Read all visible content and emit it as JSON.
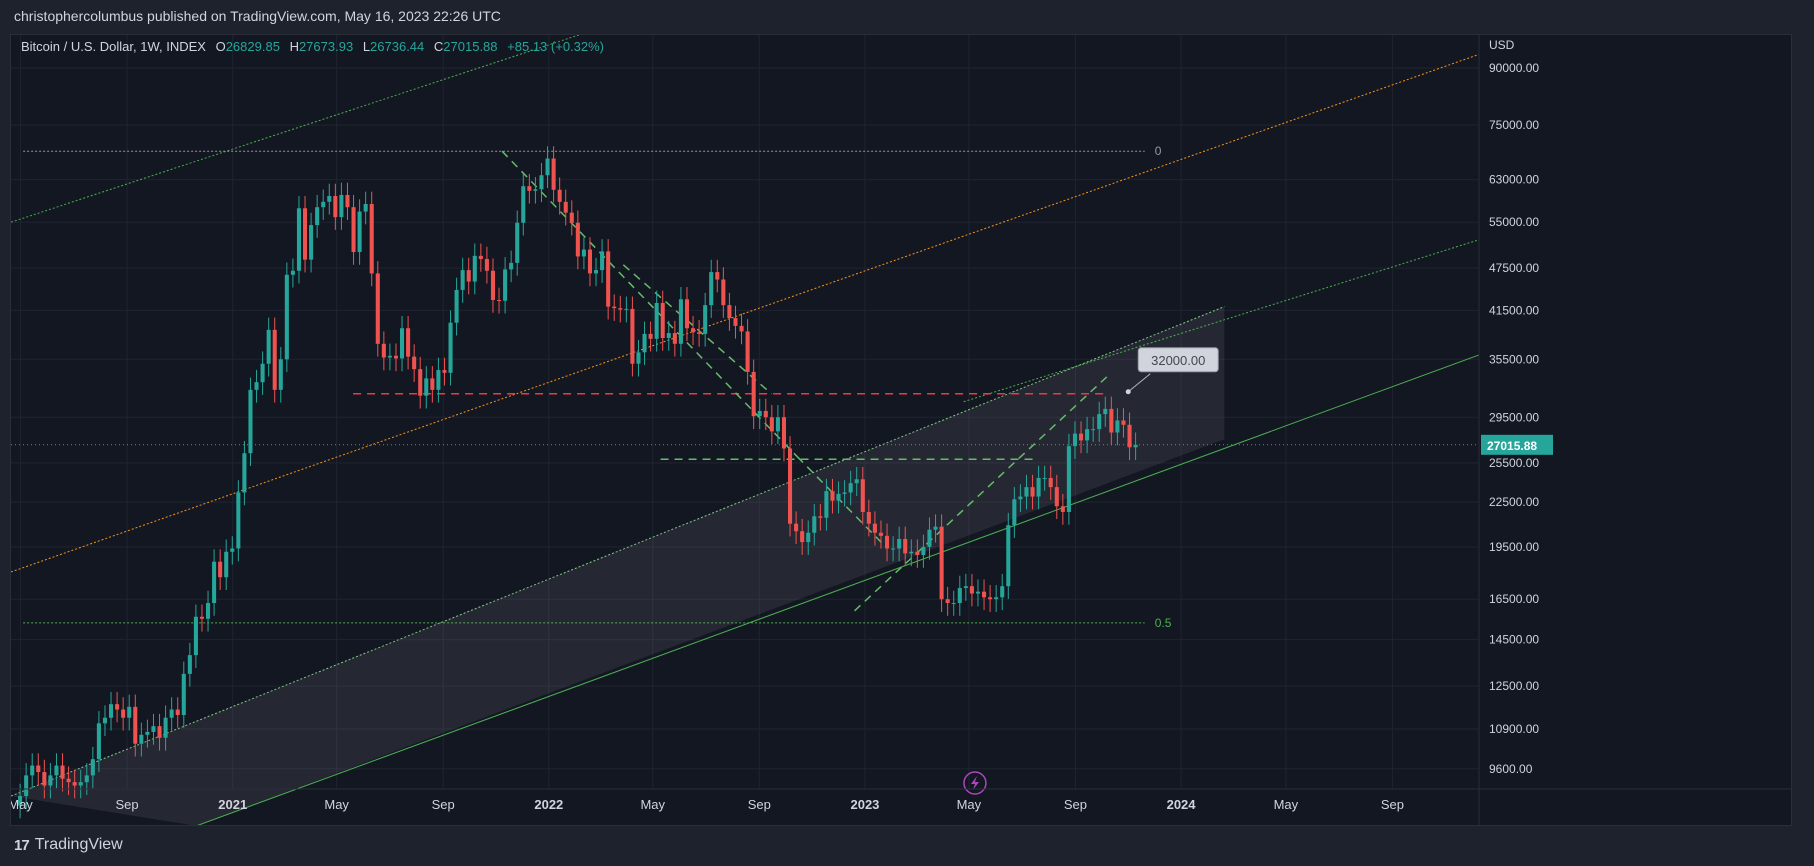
{
  "header": {
    "text": "christophercolumbus published on TradingView.com, May 16, 2023 22:26 UTC"
  },
  "symbol_info": {
    "name": "Bitcoin / U.S. Dollar, 1W, INDEX",
    "o_label": "O",
    "o_value": "26829.85",
    "h_label": "H",
    "h_value": "27673.93",
    "l_label": "L",
    "l_value": "26736.44",
    "c_label": "C",
    "c_value": "27015.88",
    "change": "+85.13 (+0.32%)"
  },
  "footer": {
    "logo": "17",
    "brand": "TradingView"
  },
  "colors": {
    "background": "#131722",
    "frame": "#1e222d",
    "grid": "#1f2430",
    "up": "#26a69a",
    "down": "#ef5350",
    "orange": "#f7931a",
    "green_line": "#4caf50",
    "dashed_green": "#66bb6a",
    "dashed_red": "#f23645",
    "last_price_bg": "#26a69a",
    "channel_fill": "#787b86"
  },
  "chart_data": {
    "type": "candlestick",
    "title": "Bitcoin / U.S. Dollar, 1W, INDEX",
    "interval": "1W",
    "currency_label": "USD",
    "y_scale": "log",
    "ylim": [
      9000,
      100000
    ],
    "xlim": [
      "2020-04-20",
      "2024-12-10"
    ],
    "grid": true,
    "last_price": 27015.88,
    "y_ticks": [
      90000,
      75000,
      63000,
      55000,
      47500,
      41500,
      35500,
      29500,
      25500,
      22500,
      19500,
      16500,
      14500,
      12500,
      10900,
      9600
    ],
    "y_tick_labels": [
      "90000.00",
      "75000.00",
      "63000.00",
      "55000.00",
      "47500.00",
      "41500.00",
      "35500.00",
      "29500.00",
      "25500.00",
      "22500.00",
      "19500.00",
      "16500.00",
      "14500.00",
      "12500.00",
      "10900.00",
      "9600.00"
    ],
    "x_ticks": [
      {
        "label": "May",
        "date": "2020-05-01",
        "bold": false
      },
      {
        "label": "Sep",
        "date": "2020-09-01",
        "bold": false
      },
      {
        "label": "2021",
        "date": "2021-01-01",
        "bold": true
      },
      {
        "label": "May",
        "date": "2021-05-01",
        "bold": false
      },
      {
        "label": "Sep",
        "date": "2021-09-01",
        "bold": false
      },
      {
        "label": "2022",
        "date": "2022-01-01",
        "bold": true
      },
      {
        "label": "May",
        "date": "2022-05-01",
        "bold": false
      },
      {
        "label": "Sep",
        "date": "2022-09-01",
        "bold": false
      },
      {
        "label": "2023",
        "date": "2023-01-01",
        "bold": true
      },
      {
        "label": "May",
        "date": "2023-05-01",
        "bold": false
      },
      {
        "label": "Sep",
        "date": "2023-09-01",
        "bold": false
      },
      {
        "label": "2024",
        "date": "2024-01-01",
        "bold": true
      },
      {
        "label": "May",
        "date": "2024-05-01",
        "bold": false
      },
      {
        "label": "Sep",
        "date": "2024-09-01",
        "bold": false
      }
    ],
    "candles": {
      "start": "2020-04-27",
      "step_days": 7,
      "closes": [
        8800,
        9400,
        9700,
        9500,
        9100,
        9400,
        9700,
        9300,
        9200,
        9100,
        9200,
        9400,
        9900,
        11100,
        11300,
        11800,
        11600,
        11300,
        11700,
        10400,
        10700,
        10800,
        11000,
        10600,
        11300,
        11600,
        11400,
        13000,
        13800,
        15600,
        15500,
        16300,
        18600,
        17700,
        19200,
        19400,
        23200,
        26300,
        32200,
        33000,
        35000,
        39000,
        32200,
        35500,
        46500,
        47100,
        57500,
        48800,
        54500,
        57700,
        58700,
        59800,
        55900,
        60000,
        57700,
        50000,
        56900,
        58300,
        46700,
        37300,
        35700,
        35900,
        35600,
        39200,
        35800,
        34400,
        31600,
        33400,
        32200,
        34300,
        34000,
        39900,
        44300,
        47200,
        45500,
        49400,
        48900,
        47100,
        42900,
        42800,
        47300,
        48300,
        54900,
        61700,
        60800,
        61100,
        63900,
        67400,
        61000,
        58700,
        56700,
        54900,
        49300,
        50400,
        46700,
        47200,
        50100,
        42000,
        41800,
        41600,
        41700,
        35000,
        36300,
        38500,
        37900,
        42500,
        38000,
        38600,
        37300,
        43000,
        39200,
        38700,
        38500,
        42200,
        46900,
        45800,
        42200,
        40500,
        39500,
        38800,
        34100,
        29600,
        30100,
        29500,
        28200,
        29500,
        26700,
        21000,
        20500,
        19800,
        20400,
        21500,
        21400,
        23300,
        22600,
        23100,
        23200,
        23900,
        24200,
        21800,
        21000,
        20400,
        20200,
        19400,
        19400,
        20000,
        19100,
        19200,
        19000,
        19500,
        20600,
        20800,
        16500,
        16300,
        16300,
        17100,
        17200,
        16800,
        16900,
        16600,
        16500,
        16600,
        17200,
        20900,
        22700,
        22900,
        23600,
        22900,
        24300,
        24300,
        23600,
        22200,
        21800,
        26900,
        28000,
        27400,
        28400,
        28400,
        29800,
        30300,
        28100,
        29200,
        28800,
        26800,
        27015.88
      ]
    },
    "level_lines": [
      {
        "name": "fib-0",
        "price": 69000,
        "from": "2020-05-04",
        "to": "2023-11-20",
        "label": "0",
        "color": "#9598a1"
      },
      {
        "name": "fib-0.5",
        "price": 15300,
        "from": "2020-05-04",
        "to": "2023-11-20",
        "label": "0.5",
        "color": "#4caf50"
      }
    ],
    "callout": {
      "label": "32000.00",
      "date": "2023-11-01",
      "price": 32000
    }
  }
}
